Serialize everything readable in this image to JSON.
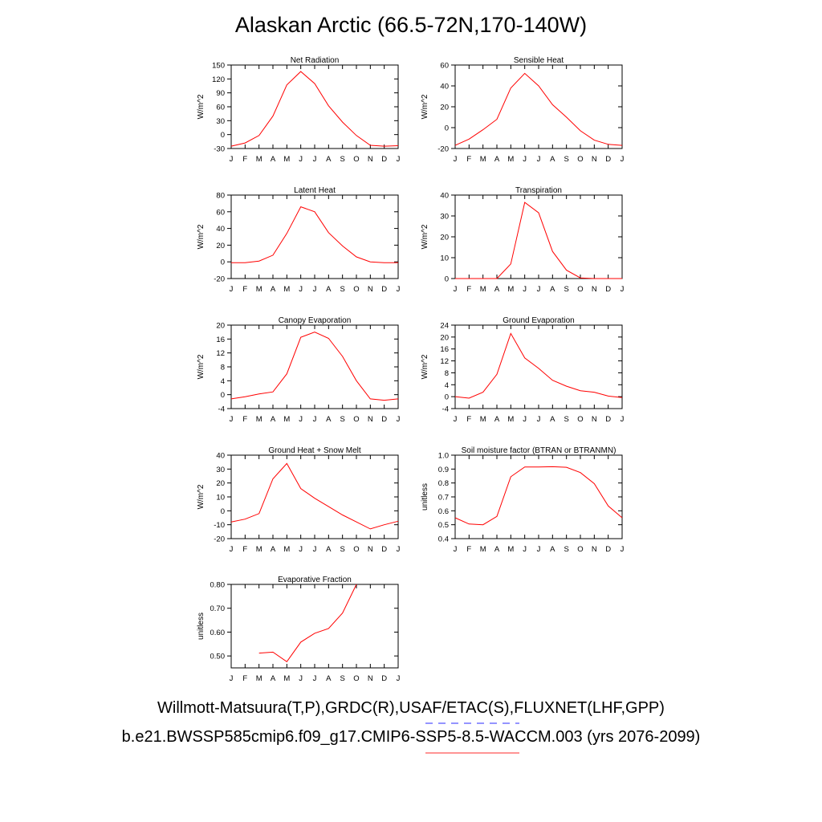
{
  "title": "Alaskan Arctic (66.5-72N,170-140W)",
  "footer": {
    "line1": "Willmott-Matsuura(T,P),GRDC(R),USAF/ETAC(S),FLUXNET(LHF,GPP)",
    "line2": "b.e21.BWSSP585cmip6.f09_g17.CMIP6-SSP5-8.5-WACCM.003 (yrs 2076-2099)"
  },
  "colors": {
    "line": "#ff0000",
    "legend_blue": "#5555ff",
    "legend_red": "#ff5555"
  },
  "chart_data": [
    {
      "type": "line",
      "title": "Net Radiation",
      "ylabel": "W/m^2",
      "categories": [
        "J",
        "F",
        "M",
        "A",
        "M",
        "J",
        "J",
        "A",
        "S",
        "O",
        "N",
        "D",
        "J"
      ],
      "ylim": [
        -30,
        150
      ],
      "yticks": [
        -30,
        0,
        30,
        60,
        90,
        120,
        150
      ],
      "ytick_labels": [
        "-30",
        "0",
        "30",
        "60",
        "90",
        "120",
        "150"
      ],
      "values": [
        -25,
        -18,
        -2,
        40,
        107,
        136,
        110,
        62,
        27,
        -2,
        -23,
        -25,
        -24
      ]
    },
    {
      "type": "line",
      "title": "Sensible Heat",
      "ylabel": "W/m^2",
      "categories": [
        "J",
        "F",
        "M",
        "A",
        "M",
        "J",
        "J",
        "A",
        "S",
        "O",
        "N",
        "D",
        "J"
      ],
      "ylim": [
        -20,
        60
      ],
      "yticks": [
        -20,
        0,
        20,
        40,
        60
      ],
      "ytick_labels": [
        "-20",
        "0",
        "20",
        "40",
        "60"
      ],
      "values": [
        -17,
        -11,
        -2,
        8,
        38,
        52,
        40,
        22,
        10,
        -3,
        -12,
        -16,
        -17
      ]
    },
    {
      "type": "line",
      "title": "Latent Heat",
      "ylabel": "W/m^2",
      "categories": [
        "J",
        "F",
        "M",
        "A",
        "M",
        "J",
        "J",
        "A",
        "S",
        "O",
        "N",
        "D",
        "J"
      ],
      "ylim": [
        -20,
        80
      ],
      "yticks": [
        -20,
        0,
        20,
        40,
        60,
        80
      ],
      "ytick_labels": [
        "-20",
        "0",
        "20",
        "40",
        "60",
        "80"
      ],
      "values": [
        -1,
        -1,
        1,
        8,
        34,
        66,
        60,
        35,
        19,
        6,
        0,
        -1,
        -1
      ]
    },
    {
      "type": "line",
      "title": "Transpiration",
      "ylabel": "W/m^2",
      "categories": [
        "J",
        "F",
        "M",
        "A",
        "M",
        "J",
        "J",
        "A",
        "S",
        "O",
        "N",
        "D",
        "J"
      ],
      "ylim": [
        0,
        40
      ],
      "yticks": [
        0,
        10,
        20,
        30,
        40
      ],
      "ytick_labels": [
        "0",
        "10",
        "20",
        "30",
        "40"
      ],
      "values": [
        0,
        0,
        0,
        0,
        7,
        36.5,
        31.5,
        13,
        4,
        0.3,
        0,
        0,
        0
      ]
    },
    {
      "type": "line",
      "title": "Canopy Evaporation",
      "ylabel": "W/m^2",
      "categories": [
        "J",
        "F",
        "M",
        "A",
        "M",
        "J",
        "J",
        "A",
        "S",
        "O",
        "N",
        "D",
        "J"
      ],
      "ylim": [
        -4,
        20
      ],
      "yticks": [
        -4,
        0,
        4,
        8,
        12,
        16,
        20
      ],
      "ytick_labels": [
        "-4",
        "0",
        "4",
        "8",
        "12",
        "16",
        "20"
      ],
      "values": [
        -1.2,
        -0.6,
        0.2,
        0.8,
        6,
        16.5,
        18,
        16.2,
        11,
        4,
        -1.2,
        -1.6,
        -1.2
      ]
    },
    {
      "type": "line",
      "title": "Ground Evaporation",
      "ylabel": "W/m^2",
      "categories": [
        "J",
        "F",
        "M",
        "A",
        "M",
        "J",
        "J",
        "A",
        "S",
        "O",
        "N",
        "D",
        "J"
      ],
      "ylim": [
        -4,
        24
      ],
      "yticks": [
        -4,
        0,
        4,
        8,
        12,
        16,
        20,
        24
      ],
      "ytick_labels": [
        "-4",
        "0",
        "4",
        "8",
        "12",
        "16",
        "20",
        "24"
      ],
      "values": [
        0,
        -0.5,
        1.5,
        7.5,
        21.2,
        13,
        9.5,
        5.5,
        3.5,
        2,
        1.5,
        0.2,
        -0.3
      ]
    },
    {
      "type": "line",
      "title": "Ground Heat + Snow Melt",
      "ylabel": "W/m^2",
      "categories": [
        "J",
        "F",
        "M",
        "A",
        "M",
        "J",
        "J",
        "A",
        "S",
        "O",
        "N",
        "D",
        "J"
      ],
      "ylim": [
        -20,
        40
      ],
      "yticks": [
        -20,
        -10,
        0,
        10,
        20,
        30,
        40
      ],
      "ytick_labels": [
        "-20",
        "-10",
        "0",
        "10",
        "20",
        "30",
        "40"
      ],
      "values": [
        -8,
        -6,
        -2,
        23,
        34,
        16,
        9,
        3,
        -3,
        -8,
        -13,
        -10,
        -7.5
      ]
    },
    {
      "type": "line",
      "title": "Soil moisture factor (BTRAN or BTRANMN)",
      "ylabel": "unitless",
      "categories": [
        "J",
        "F",
        "M",
        "A",
        "M",
        "J",
        "J",
        "A",
        "S",
        "O",
        "N",
        "D",
        "J"
      ],
      "ylim": [
        0.4,
        1.0
      ],
      "yticks": [
        0.4,
        0.5,
        0.6,
        0.7,
        0.8,
        0.9,
        1.0
      ],
      "ytick_labels": [
        "0.4",
        "0.5",
        "0.6",
        "0.7",
        "0.8",
        "0.9",
        "1.0"
      ],
      "values": [
        0.55,
        0.505,
        0.5,
        0.56,
        0.845,
        0.915,
        0.915,
        0.917,
        0.913,
        0.875,
        0.795,
        0.635,
        0.55
      ]
    },
    {
      "type": "line",
      "title": "Evaporative Fraction",
      "ylabel": "unitless",
      "categories": [
        "J",
        "F",
        "M",
        "A",
        "M",
        "J",
        "J",
        "A",
        "S",
        "O",
        "N",
        "D",
        "J"
      ],
      "ylim": [
        0.45,
        0.8
      ],
      "yticks": [
        0.5,
        0.6,
        0.7,
        0.8
      ],
      "ytick_labels": [
        "0.50",
        "0.60",
        "0.70",
        "0.80"
      ],
      "values": [
        null,
        null,
        0.512,
        0.516,
        0.476,
        0.558,
        0.595,
        0.615,
        0.68,
        0.8,
        null,
        null,
        null
      ]
    }
  ]
}
